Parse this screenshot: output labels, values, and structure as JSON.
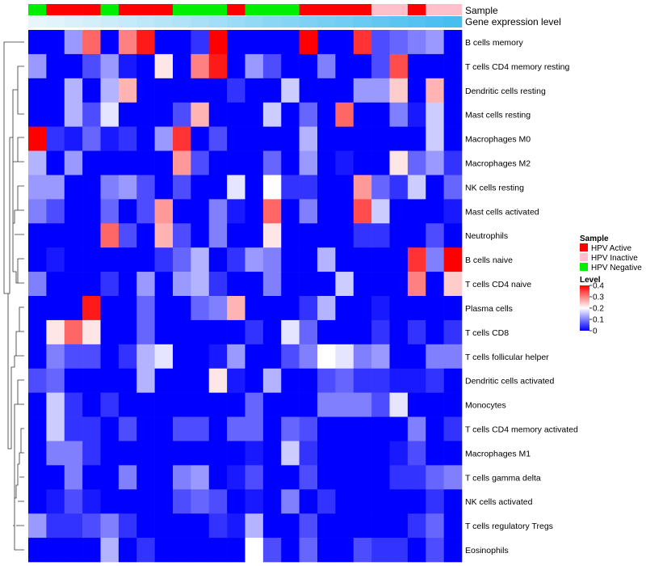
{
  "chart_data": {
    "type": "heatmap",
    "title": "",
    "annotation_tracks": [
      {
        "name": "Sample",
        "values": [
          "HPV Negative",
          "HPV Active",
          "HPV Active",
          "HPV Active",
          "HPV Negative",
          "HPV Active",
          "HPV Active",
          "HPV Active",
          "HPV Negative",
          "HPV Negative",
          "HPV Negative",
          "HPV Active",
          "HPV Negative",
          "HPV Negative",
          "HPV Negative",
          "HPV Active",
          "HPV Active",
          "HPV Active",
          "HPV Active",
          "HPV Inactive",
          "HPV Inactive",
          "HPV Active",
          "HPV Inactive",
          "HPV Inactive"
        ]
      },
      {
        "name": "Gene expression level",
        "values": [
          0.01,
          0.02,
          0.03,
          0.04,
          0.05,
          0.06,
          0.07,
          0.08,
          0.09,
          0.1,
          0.11,
          0.12,
          0.13,
          0.14,
          0.15,
          0.16,
          0.17,
          0.18,
          0.19,
          0.2,
          0.21,
          0.22,
          0.23,
          0.24
        ]
      }
    ],
    "sample_colors": {
      "HPV Active": "#ff0000",
      "HPV Inactive": "#ffc0cb",
      "HPV Negative": "#00ee00"
    },
    "color_scale": {
      "low": "#0000ff",
      "mid": "#ffffff",
      "high": "#ff0000",
      "mid_value": 0.2,
      "range": [
        0,
        0.4
      ]
    },
    "rows": [
      "B cells memory",
      "T cells CD4 memory resting",
      "Dendritic cells resting",
      "Mast cells resting",
      "Macrophages M0",
      "Macrophages M2",
      "NK cells resting",
      "Mast cells activated",
      "Neutrophils",
      "B cells naive",
      "T cells CD4 naive",
      "Plasma cells",
      "T cells CD8",
      "T cells follicular helper",
      "Dendritic cells activated",
      "Monocytes",
      "T cells CD4 memory activated",
      "Macrophages M1",
      "T cells gamma delta",
      "NK cells activated",
      "T cells regulatory  Tregs",
      "Eosinophils"
    ],
    "values": [
      [
        0.0,
        0.0,
        0.12,
        0.32,
        0.0,
        0.3,
        0.38,
        0.0,
        0.0,
        0.04,
        0.4,
        0.0,
        0.0,
        0.0,
        0.0,
        0.4,
        0.0,
        0.0,
        0.36,
        0.06,
        0.08,
        0.1,
        0.12,
        0.0
      ],
      [
        0.12,
        0.0,
        0.0,
        0.06,
        0.12,
        0.02,
        0.0,
        0.22,
        0.0,
        0.3,
        0.38,
        0.0,
        0.12,
        0.06,
        0.0,
        0.0,
        0.1,
        0.0,
        0.0,
        0.06,
        0.34,
        0.0,
        0.0,
        0.0
      ],
      [
        0.0,
        0.0,
        0.14,
        0.0,
        0.14,
        0.26,
        0.0,
        0.0,
        0.0,
        0.0,
        0.0,
        0.04,
        0.0,
        0.0,
        0.16,
        0.0,
        0.0,
        0.0,
        0.12,
        0.12,
        0.24,
        0.0,
        0.26,
        0.0
      ],
      [
        0.0,
        0.0,
        0.14,
        0.06,
        0.18,
        0.0,
        0.0,
        0.0,
        0.06,
        0.26,
        0.0,
        0.0,
        0.0,
        0.16,
        0.0,
        0.08,
        0.0,
        0.32,
        0.0,
        0.0,
        0.1,
        0.02,
        0.16,
        0.0
      ],
      [
        0.4,
        0.04,
        0.02,
        0.08,
        0.02,
        0.04,
        0.0,
        0.12,
        0.36,
        0.0,
        0.06,
        0.0,
        0.0,
        0.0,
        0.0,
        0.14,
        0.0,
        0.0,
        0.0,
        0.0,
        0.0,
        0.0,
        0.16,
        0.0
      ],
      [
        0.14,
        0.0,
        0.12,
        0.0,
        0.0,
        0.0,
        0.0,
        0.0,
        0.28,
        0.06,
        0.0,
        0.0,
        0.0,
        0.08,
        0.0,
        0.12,
        0.0,
        0.02,
        0.0,
        0.0,
        0.22,
        0.08,
        0.12,
        0.04
      ],
      [
        0.12,
        0.12,
        0.0,
        0.0,
        0.1,
        0.12,
        0.06,
        0.0,
        0.06,
        0.0,
        0.0,
        0.18,
        0.0,
        0.2,
        0.04,
        0.04,
        0.0,
        0.0,
        0.28,
        0.08,
        0.04,
        0.16,
        0.0,
        0.08
      ],
      [
        0.1,
        0.06,
        0.0,
        0.0,
        0.08,
        0.0,
        0.06,
        0.28,
        0.0,
        0.0,
        0.1,
        0.02,
        0.0,
        0.32,
        0.0,
        0.1,
        0.0,
        0.0,
        0.34,
        0.16,
        0.0,
        0.0,
        0.0,
        0.02
      ],
      [
        0.0,
        0.0,
        0.0,
        0.0,
        0.32,
        0.06,
        0.0,
        0.26,
        0.06,
        0.0,
        0.1,
        0.0,
        0.0,
        0.22,
        0.0,
        0.0,
        0.0,
        0.0,
        0.04,
        0.04,
        0.0,
        0.0,
        0.06,
        0.0
      ],
      [
        0.0,
        0.02,
        0.0,
        0.0,
        0.0,
        0.0,
        0.0,
        0.04,
        0.08,
        0.14,
        0.0,
        0.04,
        0.12,
        0.1,
        0.0,
        0.0,
        0.14,
        0.0,
        0.0,
        0.0,
        0.0,
        0.36,
        0.1,
        0.4
      ],
      [
        0.1,
        0.0,
        0.0,
        0.0,
        0.04,
        0.0,
        0.12,
        0.0,
        0.12,
        0.14,
        0.04,
        0.0,
        0.0,
        0.1,
        0.0,
        0.0,
        0.0,
        0.16,
        0.0,
        0.0,
        0.0,
        0.3,
        0.0,
        0.24
      ],
      [
        0.0,
        0.0,
        0.0,
        0.38,
        0.0,
        0.0,
        0.08,
        0.0,
        0.0,
        0.08,
        0.1,
        0.26,
        0.0,
        0.0,
        0.0,
        0.04,
        0.14,
        0.0,
        0.0,
        0.02,
        0.0,
        0.0,
        0.0,
        0.0
      ],
      [
        0.0,
        0.22,
        0.32,
        0.22,
        0.0,
        0.0,
        0.08,
        0.0,
        0.0,
        0.0,
        0.0,
        0.0,
        0.04,
        0.0,
        0.18,
        0.08,
        0.0,
        0.0,
        0.0,
        0.04,
        0.0,
        0.04,
        0.0,
        0.04
      ],
      [
        0.0,
        0.1,
        0.06,
        0.06,
        0.0,
        0.04,
        0.14,
        0.18,
        0.0,
        0.0,
        0.02,
        0.12,
        0.0,
        0.0,
        0.06,
        0.1,
        0.2,
        0.18,
        0.1,
        0.12,
        0.0,
        0.0,
        0.1,
        0.1
      ],
      [
        0.06,
        0.08,
        0.0,
        0.0,
        0.0,
        0.0,
        0.14,
        0.0,
        0.0,
        0.0,
        0.22,
        0.02,
        0.0,
        0.14,
        0.0,
        0.0,
        0.06,
        0.08,
        0.04,
        0.04,
        0.02,
        0.02,
        0.04,
        0.0
      ],
      [
        0.0,
        0.16,
        0.04,
        0.0,
        0.04,
        0.0,
        0.0,
        0.0,
        0.0,
        0.0,
        0.0,
        0.0,
        0.08,
        0.0,
        0.0,
        0.0,
        0.1,
        0.1,
        0.1,
        0.06,
        0.18,
        0.0,
        0.0,
        0.0
      ],
      [
        0.0,
        0.16,
        0.04,
        0.04,
        0.0,
        0.06,
        0.0,
        0.0,
        0.06,
        0.06,
        0.0,
        0.08,
        0.08,
        0.0,
        0.08,
        0.06,
        0.0,
        0.0,
        0.0,
        0.0,
        0.0,
        0.1,
        0.0,
        0.04
      ],
      [
        0.0,
        0.1,
        0.1,
        0.04,
        0.0,
        0.0,
        0.0,
        0.0,
        0.0,
        0.0,
        0.0,
        0.0,
        0.02,
        0.0,
        0.16,
        0.04,
        0.0,
        0.0,
        0.0,
        0.0,
        0.02,
        0.06,
        0.0,
        0.0
      ],
      [
        0.0,
        0.0,
        0.1,
        0.0,
        0.0,
        0.1,
        0.0,
        0.0,
        0.1,
        0.12,
        0.0,
        0.02,
        0.06,
        0.0,
        0.0,
        0.06,
        0.0,
        0.0,
        0.0,
        0.0,
        0.04,
        0.04,
        0.08,
        0.1
      ],
      [
        0.0,
        0.02,
        0.06,
        0.02,
        0.0,
        0.0,
        0.0,
        0.0,
        0.06,
        0.08,
        0.06,
        0.0,
        0.02,
        0.0,
        0.1,
        0.0,
        0.04,
        0.0,
        0.0,
        0.0,
        0.0,
        0.0,
        0.04,
        0.0
      ],
      [
        0.12,
        0.04,
        0.04,
        0.06,
        0.1,
        0.04,
        0.0,
        0.0,
        0.0,
        0.0,
        0.04,
        0.02,
        0.14,
        0.0,
        0.0,
        0.06,
        0.0,
        0.0,
        0.0,
        0.0,
        0.0,
        0.04,
        0.08,
        0.0
      ],
      [
        0.0,
        0.0,
        0.0,
        0.0,
        0.14,
        0.0,
        0.04,
        0.0,
        0.0,
        0.0,
        0.0,
        0.0,
        0.2,
        0.06,
        0.0,
        0.08,
        0.0,
        0.0,
        0.06,
        0.04,
        0.04,
        0.0,
        0.06,
        0.0
      ]
    ],
    "legend": {
      "sample_title": "Sample",
      "sample_entries": [
        "HPV Active",
        "HPV Inactive",
        "HPV Negative"
      ],
      "level_title": "Level",
      "level_ticks": [
        "0.4",
        "0.3",
        "0.2",
        "0.1",
        "0"
      ],
      "level_tick_values": [
        0.4,
        0.3,
        0.2,
        0.1,
        0
      ]
    }
  }
}
